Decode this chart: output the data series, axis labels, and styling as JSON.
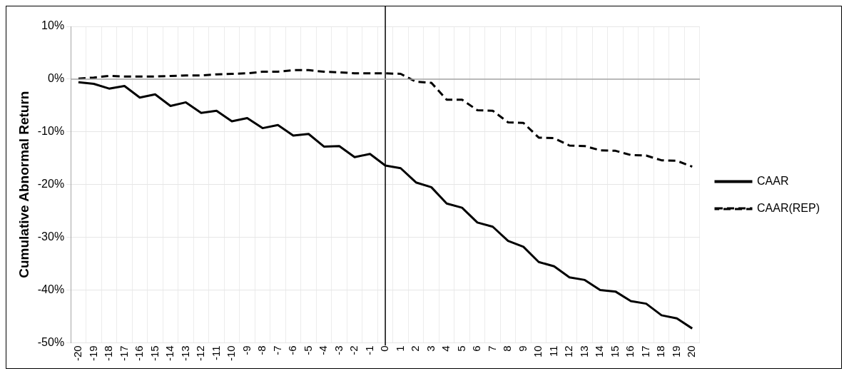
{
  "chart_data": {
    "type": "line",
    "ylabel": "Cumulative Abnormal Return",
    "categories": [
      "-20",
      "-19",
      "-18",
      "-17",
      "-16",
      "-15",
      "-14",
      "-13",
      "-12",
      "-11",
      "-10",
      "-9",
      "-8",
      "-7",
      "-6",
      "-5",
      "-4",
      "-3",
      "-2",
      "-1",
      "0",
      "1",
      "2",
      "3",
      "4",
      "5",
      "6",
      "7",
      "8",
      "9",
      "10",
      "11",
      "12",
      "13",
      "14",
      "15",
      "16",
      "17",
      "18",
      "19",
      "20"
    ],
    "series": [
      {
        "name": "CAAR",
        "color": "#000000",
        "line_style": "solid",
        "values": [
          -0.6,
          -0.9,
          -1.8,
          -1.3,
          -3.5,
          -2.9,
          -5.1,
          -4.4,
          -6.4,
          -6.0,
          -8.0,
          -7.4,
          -9.3,
          -8.7,
          -10.7,
          -10.4,
          -12.8,
          -12.7,
          -14.8,
          -14.2,
          -16.4,
          -16.9,
          -19.6,
          -20.5,
          -23.6,
          -24.4,
          -27.2,
          -28.0,
          -30.7,
          -31.8,
          -34.7,
          -35.5,
          -37.6,
          -38.1,
          -40.0,
          -40.3,
          -42.1,
          -42.6,
          -44.8,
          -45.4,
          -47.3
        ]
      },
      {
        "name": "CAAR(REP)",
        "color": "#000000",
        "line_style": "dashed",
        "values": [
          0.1,
          0.3,
          0.6,
          0.5,
          0.5,
          0.5,
          0.6,
          0.7,
          0.7,
          0.9,
          1.0,
          1.1,
          1.4,
          1.4,
          1.7,
          1.7,
          1.4,
          1.3,
          1.1,
          1.1,
          1.1,
          1.0,
          -0.5,
          -0.7,
          -3.9,
          -3.9,
          -5.9,
          -6.0,
          -8.2,
          -8.3,
          -11.1,
          -11.2,
          -12.6,
          -12.7,
          -13.5,
          -13.6,
          -14.4,
          -14.5,
          -15.4,
          -15.5,
          -16.6
        ]
      }
    ],
    "ylim": [
      -50,
      10
    ],
    "yticks": [
      {
        "value": -50,
        "label": "-50%"
      },
      {
        "value": -40,
        "label": "-40%"
      },
      {
        "value": -30,
        "label": "-30%"
      },
      {
        "value": -20,
        "label": "-20%"
      },
      {
        "value": -10,
        "label": "-10%"
      },
      {
        "value": 0,
        "label": "0%"
      },
      {
        "value": 10,
        "label": "10%"
      }
    ],
    "ref_lines": [
      {
        "axis": "x",
        "value": "0",
        "color": "#000000"
      },
      {
        "axis": "y",
        "value": 0,
        "color": "#a6a6a6"
      }
    ],
    "grid": true,
    "legend": "right",
    "marker": "none"
  }
}
